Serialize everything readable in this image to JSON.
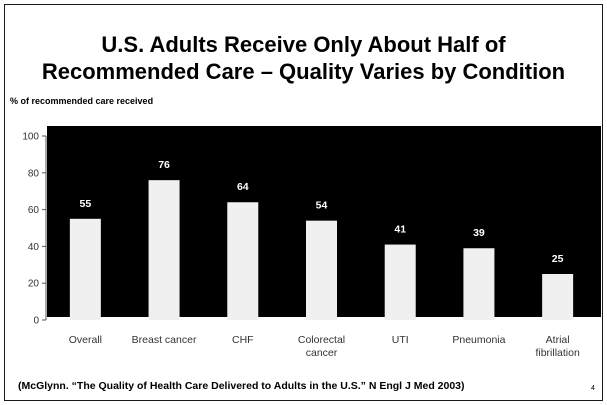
{
  "slide": {
    "title_line1": "U.S. Adults Receive Only About Half of",
    "title_line2": "Recommended Care – Quality Varies by Condition",
    "source": "(McGlynn. “The Quality of Health Care Delivered to Adults in the U.S.” N Engl J Med 2003)",
    "page_number": "4"
  },
  "chart_data": {
    "type": "bar",
    "ylabel": "% of recommended care received",
    "xlabel": "",
    "categories": [
      [
        "Overall"
      ],
      [
        "Breast cancer"
      ],
      [
        "CHF"
      ],
      [
        "Colorectal",
        "cancer"
      ],
      [
        "UTI"
      ],
      [
        "Pneumonia"
      ],
      [
        "Atrial",
        "fibrillation"
      ]
    ],
    "values": [
      55,
      76,
      64,
      54,
      41,
      39,
      25
    ],
    "ylim": [
      0,
      100
    ],
    "yticks": [
      0,
      20,
      40,
      60,
      80,
      100
    ],
    "grid": false,
    "data_labels": true,
    "colors": {
      "plot_background": "#000000",
      "bar_fill": "#f0f0f0",
      "data_label": "#ffffff",
      "axis_text": "#333333"
    }
  }
}
